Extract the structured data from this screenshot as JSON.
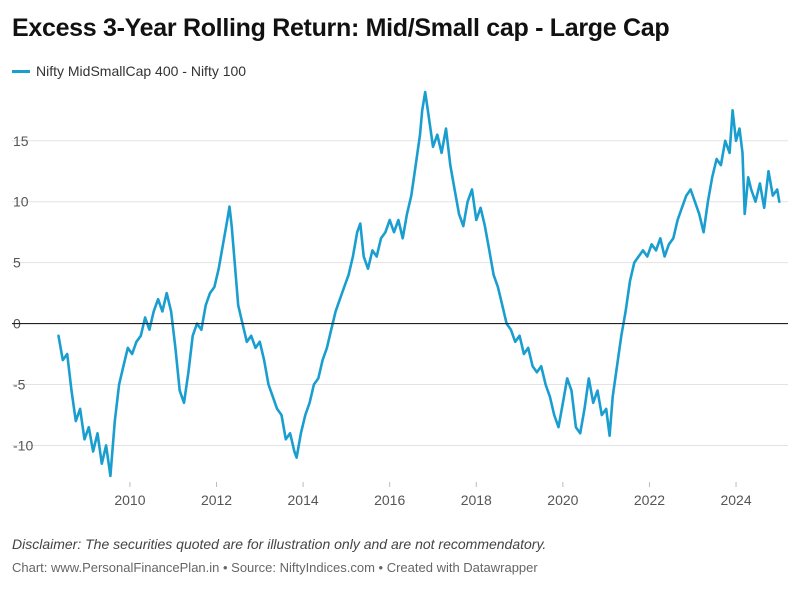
{
  "chart_data": {
    "type": "line",
    "title": "Excess 3-Year Rolling Return: Mid/Small cap - Large Cap",
    "xlabel": "",
    "ylabel": "",
    "xlim": [
      2008.2,
      2025.2
    ],
    "ylim": [
      -13,
      19
    ],
    "y_ticks": [
      -10,
      -5,
      0,
      5,
      10,
      15
    ],
    "x_ticks": [
      2010,
      2012,
      2014,
      2016,
      2018,
      2020,
      2022,
      2024
    ],
    "grid": true,
    "zero_line": true,
    "legend": "top-left",
    "series": [
      {
        "name": "Nifty MidSmallCap 400 - Nifty 100",
        "color": "#1a9ecf",
        "points": [
          [
            2008.35,
            -1.0
          ],
          [
            2008.45,
            -3.0
          ],
          [
            2008.55,
            -2.5
          ],
          [
            2008.65,
            -5.5
          ],
          [
            2008.75,
            -8.0
          ],
          [
            2008.85,
            -7.0
          ],
          [
            2008.95,
            -9.5
          ],
          [
            2009.05,
            -8.5
          ],
          [
            2009.15,
            -10.5
          ],
          [
            2009.25,
            -9.0
          ],
          [
            2009.35,
            -11.5
          ],
          [
            2009.45,
            -10.0
          ],
          [
            2009.55,
            -12.5
          ],
          [
            2009.65,
            -8.0
          ],
          [
            2009.75,
            -5.0
          ],
          [
            2009.85,
            -3.5
          ],
          [
            2009.95,
            -2.0
          ],
          [
            2010.05,
            -2.5
          ],
          [
            2010.15,
            -1.5
          ],
          [
            2010.25,
            -1.0
          ],
          [
            2010.35,
            0.5
          ],
          [
            2010.45,
            -0.5
          ],
          [
            2010.55,
            1.0
          ],
          [
            2010.65,
            2.0
          ],
          [
            2010.75,
            1.0
          ],
          [
            2010.85,
            2.5
          ],
          [
            2010.95,
            1.0
          ],
          [
            2011.05,
            -2.0
          ],
          [
            2011.15,
            -5.5
          ],
          [
            2011.25,
            -6.5
          ],
          [
            2011.35,
            -4.0
          ],
          [
            2011.45,
            -1.0
          ],
          [
            2011.55,
            0.0
          ],
          [
            2011.65,
            -0.5
          ],
          [
            2011.75,
            1.5
          ],
          [
            2011.85,
            2.5
          ],
          [
            2011.95,
            3.0
          ],
          [
            2012.05,
            4.5
          ],
          [
            2012.15,
            6.5
          ],
          [
            2012.25,
            8.5
          ],
          [
            2012.3,
            9.6
          ],
          [
            2012.35,
            8.0
          ],
          [
            2012.42,
            5.0
          ],
          [
            2012.5,
            1.5
          ],
          [
            2012.6,
            0.0
          ],
          [
            2012.7,
            -1.5
          ],
          [
            2012.8,
            -1.0
          ],
          [
            2012.9,
            -2.0
          ],
          [
            2013.0,
            -1.5
          ],
          [
            2013.1,
            -3.0
          ],
          [
            2013.2,
            -5.0
          ],
          [
            2013.3,
            -6.0
          ],
          [
            2013.4,
            -7.0
          ],
          [
            2013.5,
            -7.5
          ],
          [
            2013.6,
            -9.5
          ],
          [
            2013.7,
            -9.0
          ],
          [
            2013.8,
            -10.5
          ],
          [
            2013.85,
            -11.0
          ],
          [
            2013.95,
            -9.0
          ],
          [
            2014.05,
            -7.5
          ],
          [
            2014.15,
            -6.5
          ],
          [
            2014.25,
            -5.0
          ],
          [
            2014.35,
            -4.5
          ],
          [
            2014.45,
            -3.0
          ],
          [
            2014.55,
            -2.0
          ],
          [
            2014.65,
            -0.5
          ],
          [
            2014.75,
            1.0
          ],
          [
            2014.85,
            2.0
          ],
          [
            2014.95,
            3.0
          ],
          [
            2015.05,
            4.0
          ],
          [
            2015.15,
            5.5
          ],
          [
            2015.25,
            7.5
          ],
          [
            2015.32,
            8.2
          ],
          [
            2015.4,
            5.5
          ],
          [
            2015.5,
            4.5
          ],
          [
            2015.6,
            6.0
          ],
          [
            2015.7,
            5.5
          ],
          [
            2015.8,
            7.0
          ],
          [
            2015.9,
            7.5
          ],
          [
            2016.0,
            8.5
          ],
          [
            2016.1,
            7.5
          ],
          [
            2016.2,
            8.5
          ],
          [
            2016.3,
            7.0
          ],
          [
            2016.4,
            9.0
          ],
          [
            2016.5,
            10.5
          ],
          [
            2016.6,
            13.0
          ],
          [
            2016.7,
            15.5
          ],
          [
            2016.75,
            17.5
          ],
          [
            2016.82,
            19.0
          ],
          [
            2016.9,
            17.0
          ],
          [
            2017.0,
            14.5
          ],
          [
            2017.1,
            15.5
          ],
          [
            2017.2,
            14.0
          ],
          [
            2017.3,
            16.0
          ],
          [
            2017.4,
            13.0
          ],
          [
            2017.5,
            11.0
          ],
          [
            2017.6,
            9.0
          ],
          [
            2017.7,
            8.0
          ],
          [
            2017.8,
            10.0
          ],
          [
            2017.9,
            11.0
          ],
          [
            2018.0,
            8.5
          ],
          [
            2018.1,
            9.5
          ],
          [
            2018.2,
            8.0
          ],
          [
            2018.3,
            6.0
          ],
          [
            2018.4,
            4.0
          ],
          [
            2018.5,
            3.0
          ],
          [
            2018.6,
            1.5
          ],
          [
            2018.7,
            0.0
          ],
          [
            2018.8,
            -0.5
          ],
          [
            2018.9,
            -1.5
          ],
          [
            2019.0,
            -1.0
          ],
          [
            2019.1,
            -2.5
          ],
          [
            2019.2,
            -2.0
          ],
          [
            2019.3,
            -3.5
          ],
          [
            2019.4,
            -4.0
          ],
          [
            2019.5,
            -3.5
          ],
          [
            2019.6,
            -5.0
          ],
          [
            2019.7,
            -6.0
          ],
          [
            2019.8,
            -7.5
          ],
          [
            2019.9,
            -8.5
          ],
          [
            2020.0,
            -6.5
          ],
          [
            2020.1,
            -4.5
          ],
          [
            2020.2,
            -5.5
          ],
          [
            2020.3,
            -8.5
          ],
          [
            2020.4,
            -9.0
          ],
          [
            2020.5,
            -7.0
          ],
          [
            2020.6,
            -4.5
          ],
          [
            2020.7,
            -6.5
          ],
          [
            2020.8,
            -5.5
          ],
          [
            2020.9,
            -7.5
          ],
          [
            2021.0,
            -7.0
          ],
          [
            2021.08,
            -9.2
          ],
          [
            2021.15,
            -6.0
          ],
          [
            2021.25,
            -3.5
          ],
          [
            2021.35,
            -1.0
          ],
          [
            2021.45,
            1.0
          ],
          [
            2021.55,
            3.5
          ],
          [
            2021.65,
            5.0
          ],
          [
            2021.75,
            5.5
          ],
          [
            2021.85,
            6.0
          ],
          [
            2021.95,
            5.5
          ],
          [
            2022.05,
            6.5
          ],
          [
            2022.15,
            6.0
          ],
          [
            2022.25,
            7.0
          ],
          [
            2022.35,
            5.5
          ],
          [
            2022.45,
            6.5
          ],
          [
            2022.55,
            7.0
          ],
          [
            2022.65,
            8.5
          ],
          [
            2022.75,
            9.5
          ],
          [
            2022.85,
            10.5
          ],
          [
            2022.95,
            11.0
          ],
          [
            2023.05,
            10.0
          ],
          [
            2023.15,
            9.0
          ],
          [
            2023.25,
            7.5
          ],
          [
            2023.35,
            10.0
          ],
          [
            2023.45,
            12.0
          ],
          [
            2023.55,
            13.5
          ],
          [
            2023.65,
            13.0
          ],
          [
            2023.75,
            15.0
          ],
          [
            2023.85,
            14.0
          ],
          [
            2023.92,
            17.5
          ],
          [
            2024.0,
            15.0
          ],
          [
            2024.08,
            16.0
          ],
          [
            2024.15,
            14.0
          ],
          [
            2024.2,
            9.0
          ],
          [
            2024.28,
            12.0
          ],
          [
            2024.35,
            11.0
          ],
          [
            2024.45,
            10.0
          ],
          [
            2024.55,
            11.5
          ],
          [
            2024.65,
            9.5
          ],
          [
            2024.75,
            12.5
          ],
          [
            2024.85,
            10.5
          ],
          [
            2024.95,
            11.0
          ],
          [
            2025.0,
            10.0
          ]
        ]
      }
    ]
  },
  "footer": {
    "disclaimer": "Disclaimer: The securities quoted are for illustration only and are not recommendatory.",
    "credit": "Chart: www.PersonalFinancePlan.in • Source: NiftyIndices.com • Created with Datawrapper"
  }
}
